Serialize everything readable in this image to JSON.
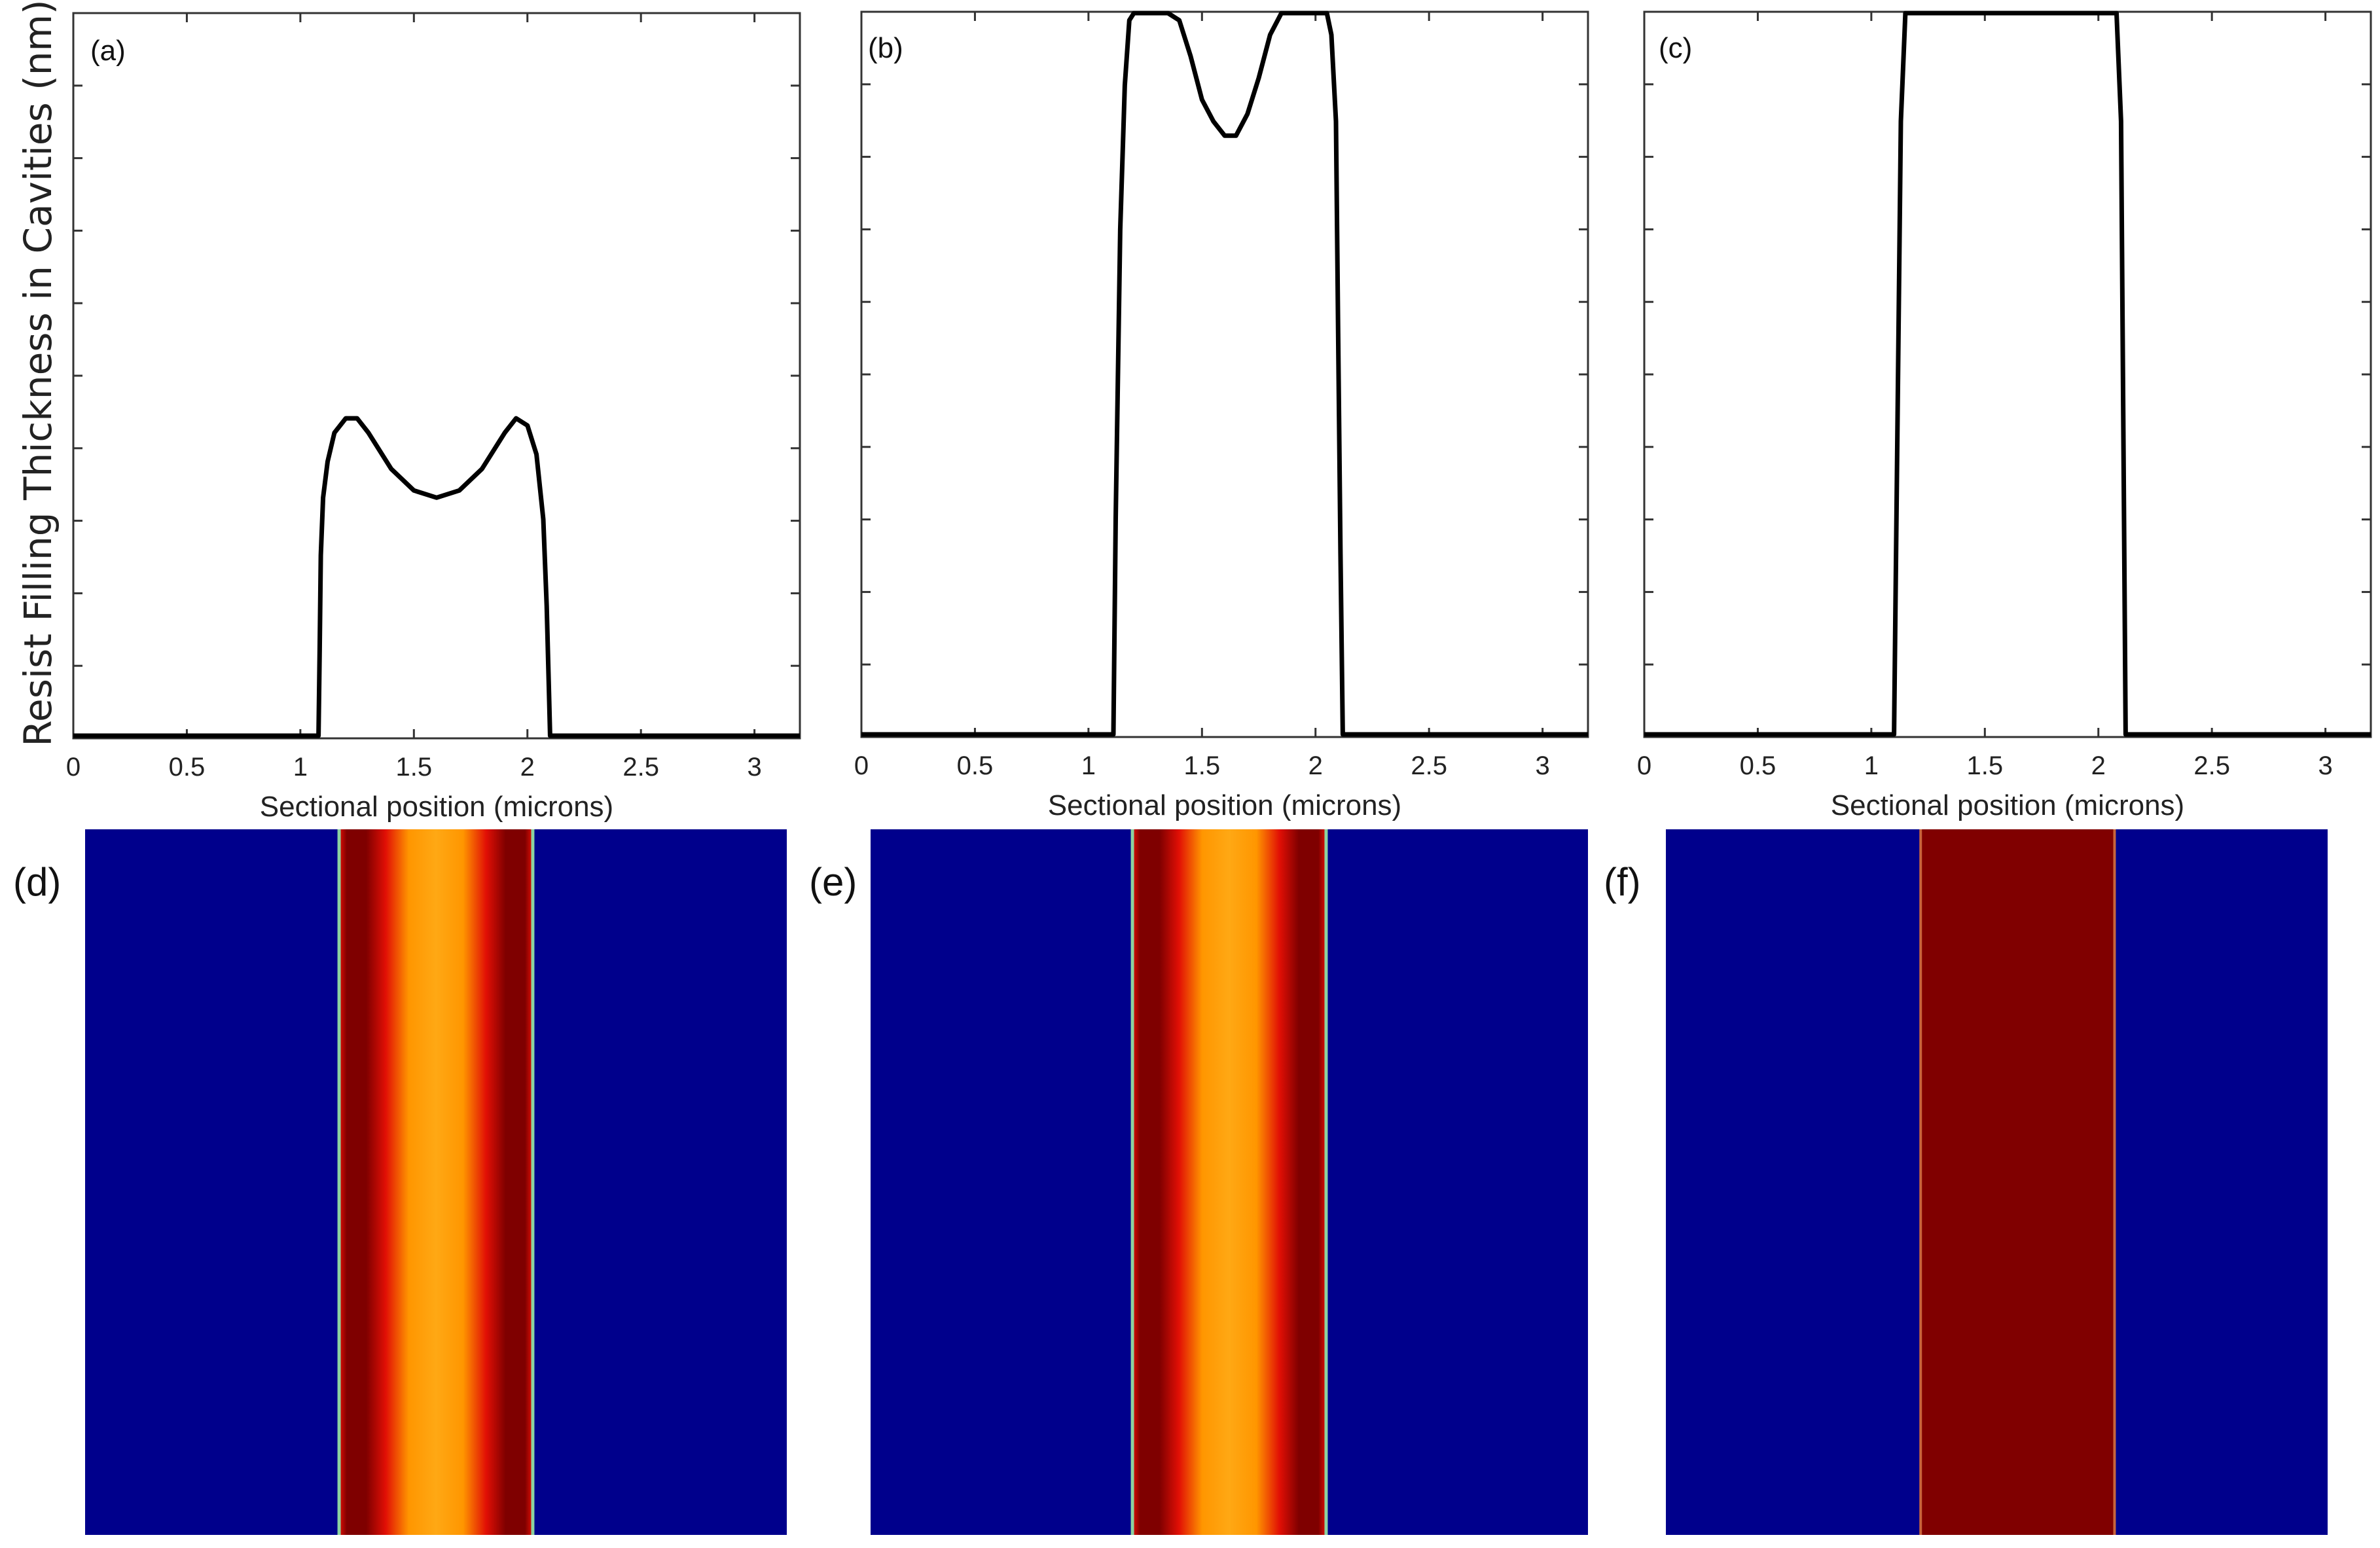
{
  "y_axis_label": "Resist Filling Thickness in Cavities (nm)",
  "colors": {
    "frame": "#333333",
    "curve": "#000000",
    "map_low": "#00008c",
    "map_edge": "#8cd2a0",
    "map_dark": "#7f0000",
    "map_red": "#e10f05",
    "map_orange": "#ff9600",
    "map_orange_light": "#ffa814",
    "map_uniform": "#800000"
  },
  "chart_data": [
    {
      "type": "line",
      "panel": "(a)",
      "xlabel": "Sectional position (microns)",
      "ylabel": "Resist Filling Thickness in Cavities (nm)",
      "xlim": [
        0,
        3.2
      ],
      "ylim": [
        0,
        1
      ],
      "x_ticks": [
        "0",
        "0.5",
        "1",
        "1.5",
        "2",
        "2.5",
        "3"
      ],
      "x_tick_values": [
        0,
        0.5,
        1,
        1.5,
        2,
        2.5,
        3
      ],
      "y_tick_count": 10,
      "series": [
        {
          "name": "filling thickness",
          "x": [
            0,
            1.08,
            1.085,
            1.09,
            1.1,
            1.12,
            1.15,
            1.2,
            1.25,
            1.3,
            1.4,
            1.5,
            1.6,
            1.7,
            1.8,
            1.9,
            1.95,
            2.0,
            2.04,
            2.07,
            2.085,
            2.095,
            2.1,
            3.2
          ],
          "y": [
            0,
            0,
            0.12,
            0.25,
            0.33,
            0.38,
            0.42,
            0.44,
            0.44,
            0.42,
            0.37,
            0.34,
            0.33,
            0.34,
            0.37,
            0.42,
            0.44,
            0.43,
            0.39,
            0.3,
            0.18,
            0.06,
            0,
            0
          ]
        }
      ]
    },
    {
      "type": "line",
      "panel": "(b)",
      "xlabel": "Sectional position (microns)",
      "ylabel": "",
      "xlim": [
        0,
        3.2
      ],
      "ylim": [
        0,
        1
      ],
      "x_ticks": [
        "0",
        "0.5",
        "1",
        "1.5",
        "2",
        "2.5",
        "3"
      ],
      "x_tick_values": [
        0,
        0.5,
        1,
        1.5,
        2,
        2.5,
        3
      ],
      "y_tick_count": 10,
      "series": [
        {
          "name": "filling thickness",
          "x": [
            0,
            1.11,
            1.12,
            1.14,
            1.16,
            1.18,
            1.2,
            1.35,
            1.4,
            1.45,
            1.5,
            1.55,
            1.6,
            1.65,
            1.7,
            1.75,
            1.8,
            1.85,
            1.9,
            2.05,
            2.07,
            2.09,
            2.1,
            2.11,
            2.12,
            3.2
          ],
          "y": [
            0,
            0,
            0.3,
            0.7,
            0.9,
            0.99,
            1.0,
            1.0,
            0.99,
            0.94,
            0.88,
            0.85,
            0.83,
            0.83,
            0.86,
            0.91,
            0.97,
            1.0,
            1.0,
            1.0,
            0.97,
            0.85,
            0.55,
            0.25,
            0,
            0
          ]
        }
      ]
    },
    {
      "type": "line",
      "panel": "(c)",
      "xlabel": "Sectional position (microns)",
      "ylabel": "",
      "xlim": [
        0,
        3.2
      ],
      "ylim": [
        0,
        1
      ],
      "x_ticks": [
        "0",
        "0.5",
        "1",
        "1.5",
        "2",
        "2.5",
        "3"
      ],
      "x_tick_values": [
        0,
        0.5,
        1,
        1.5,
        2,
        2.5,
        3
      ],
      "y_tick_count": 10,
      "series": [
        {
          "name": "filling thickness",
          "x": [
            0,
            1.1,
            1.13,
            1.15,
            2.08,
            2.1,
            2.12,
            3.2
          ],
          "y": [
            0,
            0,
            0.85,
            1.0,
            1.0,
            0.85,
            0,
            0
          ]
        }
      ]
    },
    {
      "type": "heatmap",
      "panel": "(d)",
      "orientation": "vertical stripes",
      "band_x_start_fraction": 0.362,
      "band_x_end_fraction": 0.638,
      "profile": "dark red edges, orange center"
    },
    {
      "type": "heatmap",
      "panel": "(e)",
      "orientation": "vertical stripes",
      "band_x_start_fraction": 0.365,
      "band_x_end_fraction": 0.635,
      "profile": "dark red edges, orange center"
    },
    {
      "type": "heatmap",
      "panel": "(f)",
      "orientation": "vertical stripes",
      "band_x_start_fraction": 0.385,
      "band_x_end_fraction": 0.678,
      "profile": "uniform dark red"
    }
  ]
}
